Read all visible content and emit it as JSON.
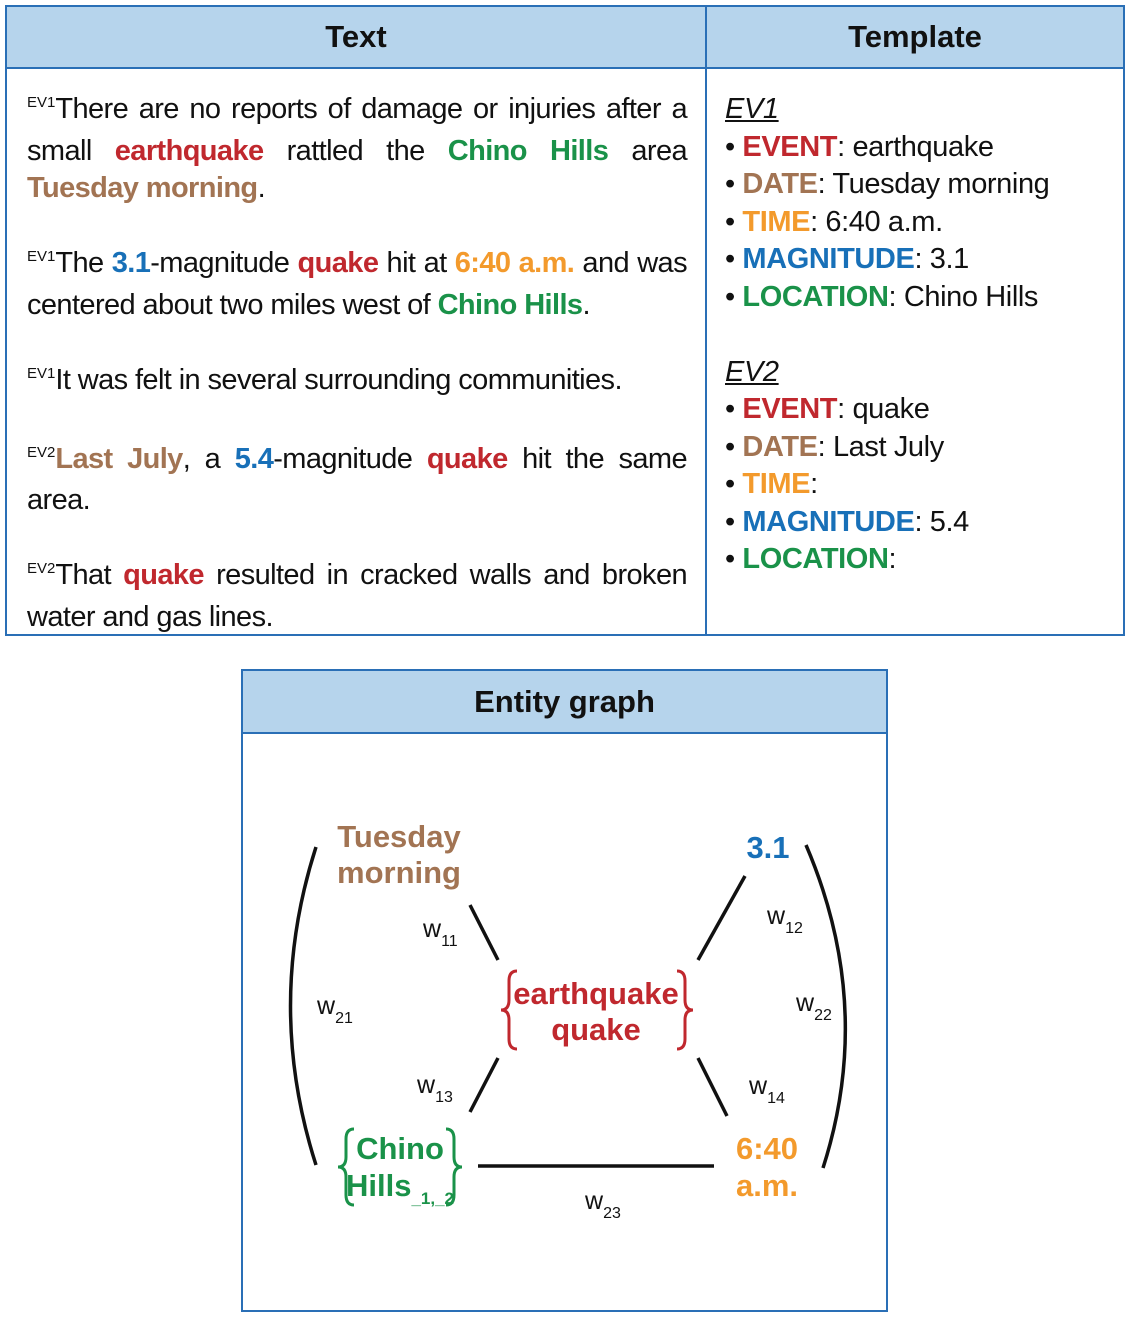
{
  "headers": {
    "text": "Text",
    "template": "Template",
    "graph": "Entity graph"
  },
  "sentences": [
    {
      "tag": "EV1",
      "parts": [
        {
          "t": "There are no reports of damage or injuries after a small ",
          "c": ""
        },
        {
          "t": "earthquake",
          "c": "red"
        },
        {
          "t": " rattled the ",
          "c": ""
        },
        {
          "t": "Chino Hills",
          "c": "green"
        },
        {
          "t": " area ",
          "c": ""
        },
        {
          "t": "Tuesday morning",
          "c": "brown"
        },
        {
          "t": ".",
          "c": ""
        }
      ]
    },
    {
      "tag": "EV1",
      "parts": [
        {
          "t": "The ",
          "c": ""
        },
        {
          "t": "3.1",
          "c": "blue"
        },
        {
          "t": "-magnitude ",
          "c": ""
        },
        {
          "t": "quake",
          "c": "red"
        },
        {
          "t": " hit at ",
          "c": ""
        },
        {
          "t": "6:40 a.m.",
          "c": "orange"
        },
        {
          "t": " and was centered about two miles west of ",
          "c": ""
        },
        {
          "t": "Chino Hills",
          "c": "green"
        },
        {
          "t": ".",
          "c": ""
        }
      ]
    },
    {
      "tag": "EV1",
      "parts": [
        {
          "t": "It was felt in several surrounding communities.",
          "c": ""
        }
      ]
    },
    {
      "tag": "EV2",
      "parts": [
        {
          "t": "Last July",
          "c": "brown"
        },
        {
          "t": ", a ",
          "c": ""
        },
        {
          "t": "5.4",
          "c": "blue"
        },
        {
          "t": "-magnitude ",
          "c": ""
        },
        {
          "t": "quake",
          "c": "red"
        },
        {
          "t": " hit the same area.",
          "c": ""
        }
      ]
    },
    {
      "tag": "EV2",
      "parts": [
        {
          "t": "That ",
          "c": ""
        },
        {
          "t": "quake",
          "c": "red"
        },
        {
          "t": " resulted in cracked walls and broken water and gas lines.",
          "c": ""
        }
      ]
    }
  ],
  "templates": [
    {
      "title": "EV1",
      "fields": [
        {
          "key": "EVENT",
          "value": "earthquake",
          "c": "red"
        },
        {
          "key": "DATE",
          "value": "Tuesday morning",
          "c": "brown"
        },
        {
          "key": "TIME",
          "value": "6:40 a.m.",
          "c": "orange"
        },
        {
          "key": "MAGNITUDE",
          "value": "3.1",
          "c": "blue"
        },
        {
          "key": "LOCATION",
          "value": "Chino Hills",
          "c": "green"
        }
      ]
    },
    {
      "title": "EV2",
      "fields": [
        {
          "key": "EVENT",
          "value": "quake",
          "c": "red"
        },
        {
          "key": "DATE",
          "value": "Last July",
          "c": "brown"
        },
        {
          "key": "TIME",
          "value": "",
          "c": "orange"
        },
        {
          "key": "MAGNITUDE",
          "value": "5.4",
          "c": "blue"
        },
        {
          "key": "LOCATION",
          "value": "",
          "c": "green"
        }
      ]
    }
  ],
  "graph": {
    "nodes": {
      "tuesday": {
        "lines": [
          "Tuesday",
          "morning"
        ],
        "c": "brown"
      },
      "mag": {
        "lines": [
          "3.1"
        ],
        "c": "blue"
      },
      "event": {
        "lines": [
          "earthquake",
          "quake"
        ],
        "c": "red"
      },
      "chino": {
        "lines": [
          "Chino",
          "Hills"
        ],
        "sub": "_1,_2",
        "c": "green"
      },
      "time": {
        "lines": [
          "6:40",
          "a.m."
        ],
        "c": "orange"
      }
    },
    "edges": [
      {
        "w": "w",
        "sub": "11"
      },
      {
        "w": "w",
        "sub": "12"
      },
      {
        "w": "w",
        "sub": "13"
      },
      {
        "w": "w",
        "sub": "14"
      },
      {
        "w": "w",
        "sub": "21"
      },
      {
        "w": "w",
        "sub": "22"
      },
      {
        "w": "w",
        "sub": "23"
      }
    ]
  },
  "colors": {
    "red": "#c0282e",
    "brown": "#a27453",
    "green": "#1a9249",
    "blue": "#1870b8",
    "orange": "#f39a2c",
    "border": "#2a6fb6",
    "header_bg": "#b6d4ec"
  }
}
